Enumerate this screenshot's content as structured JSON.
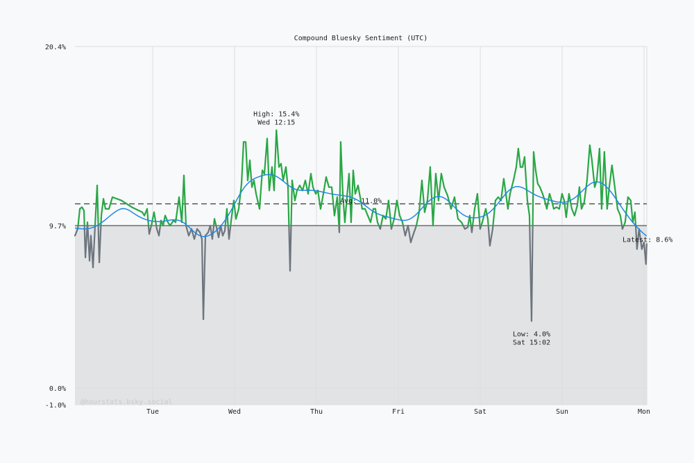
{
  "chart_data": {
    "type": "line",
    "title": "Compound Bluesky Sentiment (UTC)",
    "watermark": "@hourstats.bsky.social",
    "ylim": [
      -1.0,
      20.4
    ],
    "y_ticks": [
      "20.4%",
      "9.7%",
      "0.0%",
      "-1.0%"
    ],
    "y_tick_values": [
      20.4,
      9.7,
      0.0,
      -1.0
    ],
    "x_ticks": [
      "Tue",
      "Wed",
      "Thu",
      "Fri",
      "Sat",
      "Sun",
      "Mon"
    ],
    "threshold": 9.7,
    "average": 11.0,
    "grid": true,
    "colors": {
      "above": "#28a745",
      "below": "#6c757d",
      "smooth": "#1e88e5",
      "shade": "#e2e3e5",
      "grid": "#dddddd"
    },
    "annotations": {
      "high": {
        "line1": "High: 15.4%",
        "line2": "Wed 12:15",
        "time": "Wed 12:15",
        "value": 15.4
      },
      "low": {
        "line1": "Low: 4.0%",
        "line2": "Sat 15:02",
        "time": "Sat 15:02",
        "value": 4.0
      },
      "avg": {
        "label": "Avg: 11.0%"
      },
      "latest": {
        "label": "Latest: 8.6%",
        "value": 8.6
      }
    },
    "series": [
      {
        "points": [
          [
            "Mon 01:14",
            9.1
          ],
          [
            "Mon 02:02",
            9.5
          ],
          [
            "Mon 02:39",
            10.7
          ],
          [
            "Mon 03:16",
            10.8
          ],
          [
            "Mon 03:52",
            10.6
          ],
          [
            "Mon 04:17",
            7.8
          ],
          [
            "Mon 04:53",
            9.9
          ],
          [
            "Mon 05:30",
            7.6
          ],
          [
            "Mon 05:54",
            9.1
          ],
          [
            "Mon 06:31",
            7.2
          ],
          [
            "Mon 07:07",
            9.7
          ],
          [
            "Mon 07:44",
            12.1
          ],
          [
            "Mon 08:21",
            7.5
          ],
          [
            "Mon 08:57",
            10.3
          ],
          [
            "Mon 09:34",
            11.3
          ],
          [
            "Mon 10:10",
            10.7
          ],
          [
            "Mon 11:11",
            10.7
          ],
          [
            "Mon 12:12",
            11.4
          ],
          [
            "Mon 14:51",
            11.2
          ],
          [
            "Mon 17:54",
            10.8
          ],
          [
            "Mon 20:57",
            10.5
          ],
          [
            "Mon 21:34",
            10.3
          ],
          [
            "Mon 22:22",
            10.7
          ],
          [
            "Mon 22:59",
            9.2
          ],
          [
            "Mon 23:36",
            9.7
          ],
          [
            "Tue 00:24",
            10.5
          ],
          [
            "Tue 01:13",
            9.5
          ],
          [
            "Tue 01:50",
            9.1
          ],
          [
            "Tue 02:26",
            10.0
          ],
          [
            "Tue 03:03",
            9.7
          ],
          [
            "Tue 03:40",
            10.3
          ],
          [
            "Tue 04:28",
            9.9
          ],
          [
            "Tue 05:05",
            9.7
          ],
          [
            "Tue 06:06",
            10.0
          ],
          [
            "Tue 06:43",
            9.9
          ],
          [
            "Tue 07:44",
            11.4
          ],
          [
            "Tue 08:32",
            9.9
          ],
          [
            "Tue 09:09",
            12.7
          ],
          [
            "Tue 09:46",
            9.7
          ],
          [
            "Tue 10:34",
            9.1
          ],
          [
            "Tue 11:23",
            9.5
          ],
          [
            "Tue 12:12",
            8.9
          ],
          [
            "Tue 13:01",
            9.5
          ],
          [
            "Tue 13:50",
            9.3
          ],
          [
            "Tue 14:26",
            8.9
          ],
          [
            "Tue 14:51",
            4.1
          ],
          [
            "Tue 15:27",
            9.1
          ],
          [
            "Tue 16:16",
            9.3
          ],
          [
            "Tue 16:53",
            9.7
          ],
          [
            "Tue 17:29",
            8.9
          ],
          [
            "Tue 18:06",
            10.1
          ],
          [
            "Tue 18:42",
            9.6
          ],
          [
            "Tue 19:19",
            9.0
          ],
          [
            "Tue 19:56",
            9.7
          ],
          [
            "Tue 20:32",
            9.1
          ],
          [
            "Tue 21:09",
            9.4
          ],
          [
            "Tue 21:45",
            10.7
          ],
          [
            "Tue 22:22",
            8.9
          ],
          [
            "Tue 23:11",
            10.3
          ],
          [
            "Tue 23:47",
            11.2
          ],
          [
            "Wed 00:24",
            10.1
          ],
          [
            "Wed 01:13",
            10.7
          ],
          [
            "Wed 02:02",
            12.2
          ],
          [
            "Wed 02:38",
            14.7
          ],
          [
            "Wed 03:15",
            14.7
          ],
          [
            "Wed 03:51",
            12.4
          ],
          [
            "Wed 04:28",
            13.6
          ],
          [
            "Wed 05:05",
            12.0
          ],
          [
            "Wed 05:41",
            12.4
          ],
          [
            "Wed 06:18",
            11.6
          ],
          [
            "Wed 07:19",
            10.7
          ],
          [
            "Wed 08:08",
            13.0
          ],
          [
            "Wed 08:44",
            12.8
          ],
          [
            "Wed 09:33",
            14.9
          ],
          [
            "Wed 10:10",
            11.8
          ],
          [
            "Wed 10:58",
            13.2
          ],
          [
            "Wed 11:35",
            11.8
          ],
          [
            "Wed 12:15",
            15.4
          ],
          [
            "Wed 13:00",
            13.2
          ],
          [
            "Wed 13:37",
            13.4
          ],
          [
            "Wed 14:14",
            12.4
          ],
          [
            "Wed 15:02",
            13.2
          ],
          [
            "Wed 15:39",
            12.0
          ],
          [
            "Wed 16:16",
            7.0
          ],
          [
            "Wed 16:52",
            12.4
          ],
          [
            "Wed 17:41",
            11.2
          ],
          [
            "Wed 18:18",
            11.8
          ],
          [
            "Wed 19:06",
            12.1
          ],
          [
            "Wed 19:55",
            11.8
          ],
          [
            "Wed 20:44",
            12.4
          ],
          [
            "Wed 21:33",
            11.6
          ],
          [
            "Wed 22:22",
            12.8
          ],
          [
            "Wed 22:58",
            12.0
          ],
          [
            "Wed 23:47",
            11.6
          ],
          [
            "Thu 00:24",
            11.8
          ],
          [
            "Thu 01:12",
            10.7
          ],
          [
            "Thu 02:01",
            11.6
          ],
          [
            "Thu 02:50",
            12.6
          ],
          [
            "Thu 03:39",
            12.0
          ],
          [
            "Thu 04:28",
            12.0
          ],
          [
            "Thu 05:16",
            10.3
          ],
          [
            "Thu 06:05",
            11.4
          ],
          [
            "Thu 06:42",
            9.3
          ],
          [
            "Thu 07:06",
            14.7
          ],
          [
            "Thu 07:43",
            11.6
          ],
          [
            "Thu 08:19",
            9.9
          ],
          [
            "Thu 08:56",
            11.4
          ],
          [
            "Thu 09:33",
            12.8
          ],
          [
            "Thu 10:09",
            9.9
          ],
          [
            "Thu 10:46",
            13.0
          ],
          [
            "Thu 11:22",
            11.6
          ],
          [
            "Thu 12:11",
            12.1
          ],
          [
            "Thu 12:48",
            11.4
          ],
          [
            "Thu 13:24",
            10.7
          ],
          [
            "Thu 14:13",
            10.7
          ],
          [
            "Thu 15:02",
            10.3
          ],
          [
            "Thu 15:51",
            9.9
          ],
          [
            "Thu 16:40",
            10.7
          ],
          [
            "Thu 17:16",
            10.7
          ],
          [
            "Thu 17:53",
            9.9
          ],
          [
            "Thu 18:42",
            9.5
          ],
          [
            "Thu 19:30",
            10.3
          ],
          [
            "Thu 20:19",
            10.1
          ],
          [
            "Thu 21:08",
            11.2
          ],
          [
            "Thu 21:57",
            9.5
          ],
          [
            "Thu 22:46",
            10.1
          ],
          [
            "Thu 23:34",
            11.2
          ],
          [
            "Fri 00:23",
            10.3
          ],
          [
            "Fri 01:12",
            9.9
          ],
          [
            "Fri 02:01",
            9.1
          ],
          [
            "Fri 02:50",
            9.7
          ],
          [
            "Fri 03:38",
            8.7
          ],
          [
            "Fri 04:15",
            9.1
          ],
          [
            "Fri 05:16",
            9.7
          ],
          [
            "Fri 06:05",
            10.5
          ],
          [
            "Fri 06:54",
            12.4
          ],
          [
            "Fri 07:42",
            10.5
          ],
          [
            "Fri 08:31",
            11.2
          ],
          [
            "Fri 09:20",
            13.2
          ],
          [
            "Fri 10:09",
            9.7
          ],
          [
            "Fri 10:58",
            12.8
          ],
          [
            "Fri 11:46",
            11.2
          ],
          [
            "Fri 12:35",
            12.8
          ],
          [
            "Fri 13:24",
            12.0
          ],
          [
            "Fri 14:25",
            11.5
          ],
          [
            "Fri 15:26",
            10.7
          ],
          [
            "Fri 16:27",
            11.4
          ],
          [
            "Fri 17:28",
            10.1
          ],
          [
            "Fri 18:29",
            9.9
          ],
          [
            "Fri 19:30",
            9.5
          ],
          [
            "Fri 20:19",
            9.6
          ],
          [
            "Fri 20:55",
            10.3
          ],
          [
            "Fri 21:32",
            9.3
          ],
          [
            "Fri 22:21",
            10.7
          ],
          [
            "Fri 23:10",
            11.6
          ],
          [
            "Fri 23:58",
            9.5
          ],
          [
            "Sat 00:35",
            9.9
          ],
          [
            "Sat 01:36",
            10.7
          ],
          [
            "Sat 02:13",
            10.1
          ],
          [
            "Sat 02:49",
            8.5
          ],
          [
            "Sat 03:38",
            9.5
          ],
          [
            "Sat 04:27",
            11.2
          ],
          [
            "Sat 05:16",
            11.4
          ],
          [
            "Sat 06:04",
            11.2
          ],
          [
            "Sat 06:53",
            12.5
          ],
          [
            "Sat 07:30",
            11.6
          ],
          [
            "Sat 08:06",
            10.7
          ],
          [
            "Sat 08:43",
            11.6
          ],
          [
            "Sat 09:44",
            12.4
          ],
          [
            "Sat 10:33",
            13.2
          ],
          [
            "Sat 11:09",
            14.3
          ],
          [
            "Sat 11:46",
            13.2
          ],
          [
            "Sat 12:23",
            13.2
          ],
          [
            "Sat 12:59",
            13.8
          ],
          [
            "Sat 13:48",
            11.2
          ],
          [
            "Sat 14:25",
            10.3
          ],
          [
            "Sat 15:02",
            4.0
          ],
          [
            "Sat 15:38",
            14.1
          ],
          [
            "Sat 16:14",
            13.0
          ],
          [
            "Sat 16:51",
            12.2
          ],
          [
            "Sat 17:28",
            12.0
          ],
          [
            "Sat 18:16",
            11.6
          ],
          [
            "Sat 18:53",
            11.2
          ],
          [
            "Sat 19:30",
            10.7
          ],
          [
            "Sat 20:18",
            11.6
          ],
          [
            "Sat 20:55",
            11.2
          ],
          [
            "Sat 21:32",
            10.7
          ],
          [
            "Sat 22:20",
            10.8
          ],
          [
            "Sat 23:09",
            10.7
          ],
          [
            "Sat 23:58",
            11.6
          ],
          [
            "Sun 00:35",
            11.2
          ],
          [
            "Sun 01:11",
            10.2
          ],
          [
            "Sun 02:00",
            11.6
          ],
          [
            "Sun 02:49",
            10.7
          ],
          [
            "Sun 03:38",
            10.3
          ],
          [
            "Sun 04:26",
            10.9
          ],
          [
            "Sun 05:03",
            12.0
          ],
          [
            "Sun 05:40",
            10.7
          ],
          [
            "Sun 06:28",
            11.1
          ],
          [
            "Sun 07:17",
            12.4
          ],
          [
            "Sun 08:06",
            14.5
          ],
          [
            "Sun 08:43",
            13.6
          ],
          [
            "Sun 09:32",
            12.0
          ],
          [
            "Sun 10:08",
            12.4
          ],
          [
            "Sun 10:57",
            14.3
          ],
          [
            "Sun 11:34",
            10.7
          ],
          [
            "Sun 12:22",
            14.1
          ],
          [
            "Sun 13:11",
            10.7
          ],
          [
            "Sun 13:48",
            12.0
          ],
          [
            "Sun 14:36",
            13.3
          ],
          [
            "Sun 15:25",
            12.0
          ],
          [
            "Sun 16:14",
            10.7
          ],
          [
            "Sun 17:03",
            10.3
          ],
          [
            "Sun 17:40",
            9.5
          ],
          [
            "Sun 18:28",
            9.9
          ],
          [
            "Sun 19:17",
            11.4
          ],
          [
            "Sun 20:06",
            11.2
          ],
          [
            "Sun 20:42",
            9.9
          ],
          [
            "Sun 21:19",
            10.5
          ],
          [
            "Sun 21:56",
            8.3
          ],
          [
            "Sun 22:32",
            9.5
          ],
          [
            "Sun 23:21",
            8.3
          ],
          [
            "Sun 23:58",
            8.7
          ],
          [
            "Mon 00:34",
            7.4
          ],
          [
            "Mon 00:46",
            8.6
          ]
        ]
      }
    ]
  }
}
